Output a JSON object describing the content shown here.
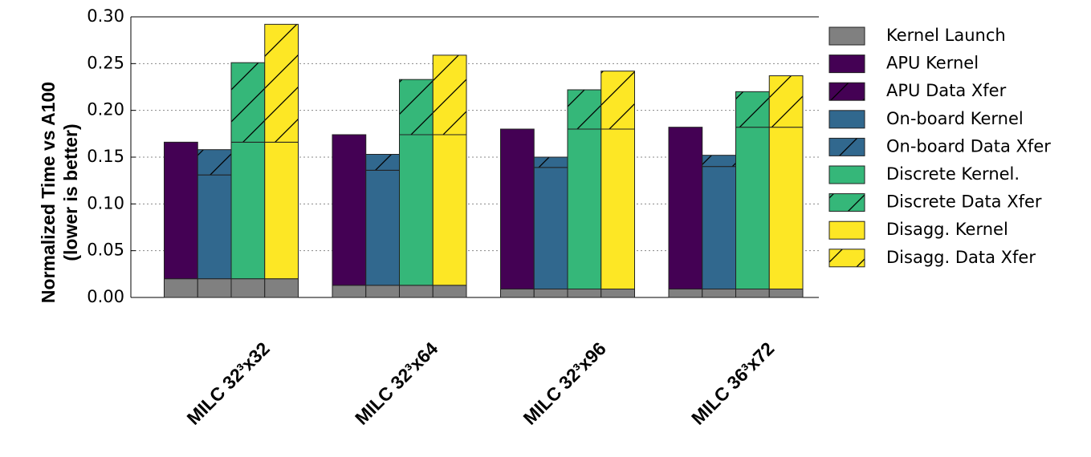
{
  "chart_data": {
    "type": "bar",
    "ylabel": [
      "Normalized Time vs A100",
      "(lower is better)"
    ],
    "categories": [
      "MILC 32³x32",
      "MILC 32³x64",
      "MILC 32³x96",
      "MILC 36³x72"
    ],
    "ylim": [
      0,
      0.3
    ],
    "yticks": [
      {
        "value": 0,
        "label": "0.00"
      },
      {
        "value": 0.05,
        "label": "0.05"
      },
      {
        "value": 0.1,
        "label": "0.10"
      },
      {
        "value": 0.15,
        "label": "0.15"
      },
      {
        "value": 0.2,
        "label": "0.20"
      },
      {
        "value": 0.25,
        "label": "0.25"
      },
      {
        "value": 0.3,
        "label": "0.30"
      }
    ],
    "grid": true,
    "legend": "right",
    "series": [
      {
        "name": "Kernel Launch",
        "color": "#808080",
        "hatch": false,
        "values": [
          0.02,
          0.013,
          0.009,
          0.009
        ]
      },
      {
        "name": "APU Kernel",
        "color": "#440154",
        "hatch": false,
        "values": [
          0.146,
          0.161,
          0.171,
          0.173
        ]
      },
      {
        "name": "APU Data Xfer",
        "color": "#440154",
        "hatch": true,
        "values": [
          0,
          0,
          0,
          0
        ]
      },
      {
        "name": "On-board Kernel",
        "color": "#31688e",
        "hatch": false,
        "values": [
          0.111,
          0.123,
          0.13,
          0.131
        ]
      },
      {
        "name": "On-board Data Xfer",
        "color": "#31688e",
        "hatch": true,
        "values": [
          0.027,
          0.017,
          0.011,
          0.012
        ]
      },
      {
        "name": "Discrete Kernel.",
        "color": "#35b779",
        "hatch": false,
        "values": [
          0.146,
          0.161,
          0.171,
          0.173
        ]
      },
      {
        "name": "Discrete Data Xfer",
        "color": "#35b779",
        "hatch": true,
        "values": [
          0.085,
          0.059,
          0.042,
          0.038
        ]
      },
      {
        "name": "Disagg. Kernel",
        "color": "#fde725",
        "hatch": false,
        "values": [
          0.146,
          0.161,
          0.171,
          0.173
        ]
      },
      {
        "name": "Disagg. Data Xfer",
        "color": "#fde725",
        "hatch": true,
        "values": [
          0.126,
          0.085,
          0.062,
          0.055
        ]
      }
    ]
  }
}
